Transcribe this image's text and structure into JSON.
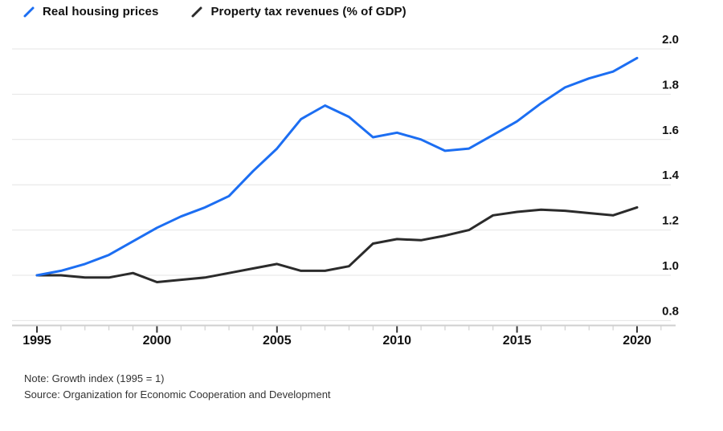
{
  "legend": {
    "items": [
      {
        "label": "Real housing prices",
        "color": "#1c6ef2",
        "icon": "line-slash-icon"
      },
      {
        "label": "Property tax revenues (% of GDP)",
        "color": "#2b2b2b",
        "icon": "line-slash-icon"
      }
    ]
  },
  "footer": {
    "note": "Note: Growth index (1995 = 1)",
    "source": "Source: Organization for Economic Cooperation and Development"
  },
  "colors": {
    "grid": "#e4e4e4",
    "axis": "#cfcfcf",
    "tick_minor": "#c6c6c6",
    "tick_major": "#3a3a3a",
    "text": "#111111"
  },
  "chart_data": {
    "type": "line",
    "title": "",
    "xlabel": "",
    "ylabel": "",
    "grid": true,
    "legend_position": "top-left",
    "y_axis_side": "right",
    "ylim": [
      0.8,
      2.0
    ],
    "yticks": [
      2.0,
      1.8,
      1.6,
      1.4,
      1.2,
      1.0,
      0.8
    ],
    "xticks_major": [
      1995,
      2000,
      2005,
      2010,
      2015,
      2020
    ],
    "x": [
      1995,
      1996,
      1997,
      1998,
      1999,
      2000,
      2001,
      2002,
      2003,
      2004,
      2005,
      2006,
      2007,
      2008,
      2009,
      2010,
      2011,
      2012,
      2013,
      2014,
      2015,
      2016,
      2017,
      2018,
      2019,
      2020
    ],
    "series": [
      {
        "name": "Real housing prices",
        "color": "#1c6ef2",
        "values": [
          1.0,
          1.02,
          1.05,
          1.09,
          1.15,
          1.21,
          1.26,
          1.3,
          1.35,
          1.46,
          1.56,
          1.69,
          1.75,
          1.7,
          1.61,
          1.63,
          1.6,
          1.55,
          1.56,
          1.62,
          1.68,
          1.76,
          1.83,
          1.87,
          1.9,
          1.96
        ]
      },
      {
        "name": "Property tax revenues (% of GDP)",
        "color": "#2b2b2b",
        "values": [
          1.0,
          1.0,
          0.99,
          0.99,
          1.01,
          0.97,
          0.98,
          0.99,
          1.01,
          1.03,
          1.05,
          1.02,
          1.02,
          1.04,
          1.14,
          1.16,
          1.155,
          1.175,
          1.2,
          1.265,
          1.28,
          1.29,
          1.285,
          1.275,
          1.265,
          1.3
        ]
      }
    ]
  }
}
